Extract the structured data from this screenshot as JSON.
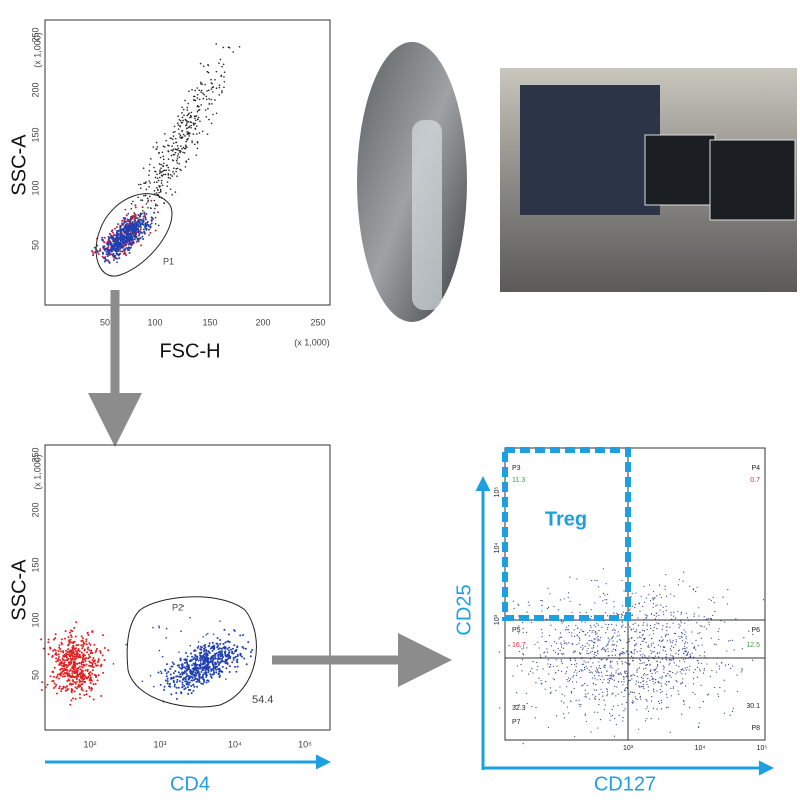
{
  "panels": [
    {
      "y_label": "SSC-A",
      "x_label": "FSC-H",
      "unit_x": "(x 1,000)",
      "unit_y": "(x 1,000)",
      "x_ticks": [
        "50",
        "100",
        "150",
        "200",
        "250"
      ],
      "y_ticks": [
        "50",
        "100",
        "150",
        "200",
        "250"
      ],
      "gate": "P1"
    },
    {
      "y_label": "SSC-A",
      "unit_y": "(x 1,000)",
      "y_ticks": [
        "50",
        "100",
        "150",
        "200",
        "250"
      ],
      "x_ticks": [
        "10²",
        "10³",
        "10⁴",
        "10⁵"
      ],
      "gate": "P2",
      "gate_value": "54.4",
      "x_label": "CD4"
    },
    {
      "y_label": "CD25",
      "x_label": "CD127",
      "highlight": "Treg",
      "y_ticks": [
        "10⁵",
        "10⁴",
        "10³"
      ],
      "x_ticks": [
        "10³",
        "10⁴",
        "10⁵"
      ],
      "quadrants": [
        {
          "name": "P3",
          "value": "11.3"
        },
        {
          "name": "P4",
          "value": "0.7"
        },
        {
          "name": "P5",
          "value": "16.7"
        },
        {
          "name": "P6",
          "value": "12.5"
        },
        {
          "name": "P7",
          "value": "32.3"
        },
        {
          "name": "P8",
          "value": "30.1"
        }
      ]
    }
  ]
}
